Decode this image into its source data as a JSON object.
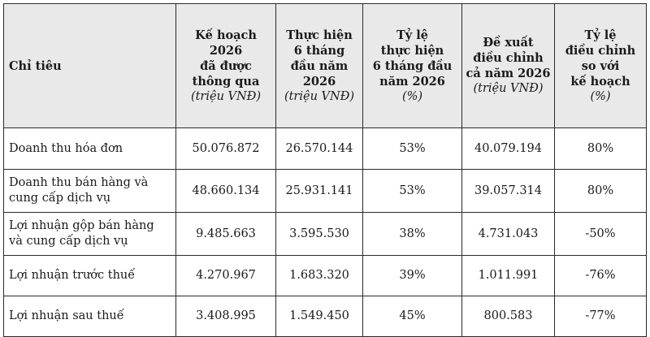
{
  "table": {
    "header": {
      "label": "Chỉ tiêu",
      "col1": {
        "lines": [
          "Kế hoạch",
          "2026",
          "đã được",
          "thông qua"
        ],
        "unit": "(triệu VNĐ)"
      },
      "col2": {
        "lines": [
          "Thực hiện",
          "6 tháng",
          "đầu năm",
          "2026"
        ],
        "unit": "(triệu VNĐ)"
      },
      "col3": {
        "lines": [
          "Tỷ lệ",
          "thực hiện",
          "6 tháng đầu",
          "năm 2026"
        ],
        "unit": "(%)"
      },
      "col4": {
        "lines": [
          "Đề xuất",
          "điều chỉnh",
          "cả năm 2026"
        ],
        "unit": "(triệu VNĐ)"
      },
      "col5": {
        "lines": [
          "Tỷ lệ",
          "điều chỉnh",
          "so với",
          "kế hoạch"
        ],
        "unit": "(%)"
      }
    },
    "rows": [
      {
        "label_lines": [
          "Doanh thu hóa đơn"
        ],
        "plan": "50.076.872",
        "actual": "26.570.144",
        "rate": "53%",
        "proposal": "40.079.194",
        "adjust": "80%"
      },
      {
        "label_lines": [
          "Doanh thu bán hàng và",
          "cung cấp dịch vụ"
        ],
        "plan": "48.660.134",
        "actual": "25.931.141",
        "rate": "53%",
        "proposal": "39.057.314",
        "adjust": "80%"
      },
      {
        "label_lines": [
          "Lợi nhuận gộp bán hàng",
          "và cung cấp dịch vụ"
        ],
        "plan": "9.485.663",
        "actual": "3.595.530",
        "rate": "38%",
        "proposal": "4.731.043",
        "adjust": "-50%"
      },
      {
        "label_lines": [
          "Lợi nhuận trước thuế"
        ],
        "plan": "4.270.967",
        "actual": "1.683.320",
        "rate": "39%",
        "proposal": "1.011.991",
        "adjust": "-76%"
      },
      {
        "label_lines": [
          "Lợi nhuận sau thuế"
        ],
        "plan": "3.408.995",
        "actual": "1.549.450",
        "rate": "45%",
        "proposal": "800.583",
        "adjust": "-77%"
      }
    ]
  }
}
